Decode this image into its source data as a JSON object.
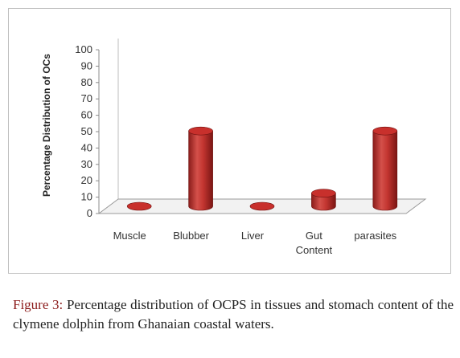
{
  "chart_data": {
    "type": "bar",
    "style": "3d-cylinder",
    "categories": [
      "Muscle",
      "Blubber",
      "Liver",
      "Gut Content",
      "parasites"
    ],
    "values": [
      0,
      46,
      0,
      8,
      46
    ],
    "ylabel": "Percentage Distribution of OCs",
    "ylim": [
      0,
      100
    ],
    "yticks": [
      0,
      10,
      20,
      30,
      40,
      50,
      60,
      70,
      80,
      90,
      100
    ],
    "grid": false,
    "bar_color": "#c0302c"
  },
  "caption": {
    "label": "Figure 3:",
    "text": "Percentage distribution of OCPS in tissues and stomach content of the clymene dolphin from Ghanaian coastal waters."
  }
}
